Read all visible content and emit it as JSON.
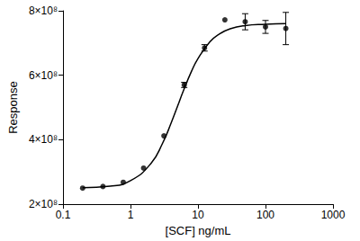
{
  "chart_data": {
    "type": "scatter",
    "x_label": "[SCF] ng/mL",
    "y_label": "Response",
    "log": "x",
    "grid": false,
    "xlim": [
      0.1,
      1000
    ],
    "xticks": [
      0.1,
      1,
      10,
      100,
      1000
    ],
    "ylim": [
      200000000,
      800000000
    ],
    "yticks": [
      {
        "value": 200000000,
        "label": "2×10⁸"
      },
      {
        "value": 400000000,
        "label": "4×10⁸"
      },
      {
        "value": 600000000,
        "label": "6×10⁸"
      },
      {
        "value": 800000000,
        "label": "8×10⁸"
      }
    ],
    "series": [
      {
        "type": "scatter",
        "marker": "circle",
        "color": "#000000",
        "x": [
          0.1953125,
          0.390625,
          0.78125,
          1.5625,
          3.125,
          6.25,
          12.5,
          25,
          50,
          100,
          200
        ],
        "values": [
          250000000,
          255000000,
          268000000,
          312000000,
          412000000,
          570000000,
          685000000,
          772000000,
          766000000,
          750000000,
          745000000
        ],
        "errors": [
          null,
          null,
          null,
          null,
          null,
          8000000,
          10000000,
          null,
          25000000,
          20000000,
          50000000
        ]
      },
      {
        "type": "line",
        "line_style": "solid",
        "color": "#000000",
        "x": [
          0.1953125,
          0.5,
          1,
          2,
          3,
          4,
          5,
          6,
          8,
          10,
          15,
          20,
          30,
          50,
          100,
          200
        ],
        "values": [
          251000000,
          256000000,
          273000000,
          326000000,
          390000000,
          452000000,
          505000000,
          549000000,
          612000000,
          652000000,
          704000000,
          726000000,
          744000000,
          754000000,
          758000000,
          760000000
        ]
      }
    ]
  }
}
